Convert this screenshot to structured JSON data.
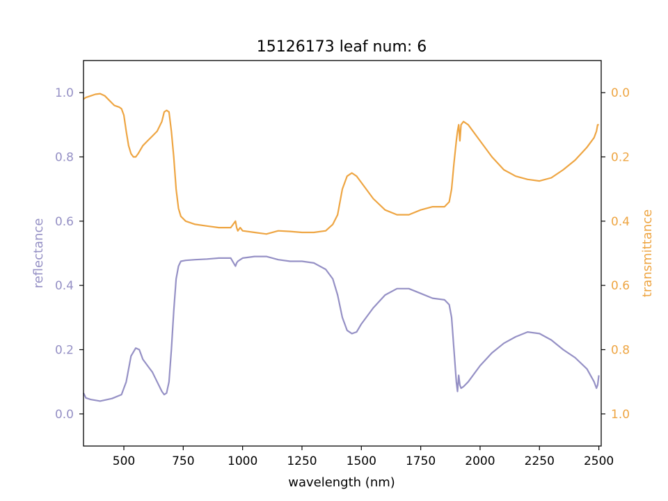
{
  "chart_data": {
    "type": "line",
    "title": "15126173 leaf num: 6",
    "xlabel": "wavelength (nm)",
    "xlim": [
      330,
      2510
    ],
    "x_ticks": [
      500,
      750,
      1000,
      1250,
      1500,
      1750,
      2000,
      2250,
      2500
    ],
    "x_tick_labels": [
      "500",
      "750",
      "1000",
      "1250",
      "1500",
      "1750",
      "2000",
      "2250",
      "2500"
    ],
    "grid": false,
    "legend": "none",
    "left_axis": {
      "label": "reflectance",
      "ylim": [
        -0.1,
        1.1
      ],
      "ticks": [
        0.0,
        0.2,
        0.4,
        0.6,
        0.8,
        1.0
      ],
      "tick_labels": [
        "0.0",
        "0.2",
        "0.4",
        "0.6",
        "0.8",
        "1.0"
      ],
      "color": "#9590c5"
    },
    "right_axis": {
      "label": "transmittance",
      "ylim": [
        1.1,
        -0.1
      ],
      "inverted": true,
      "ticks": [
        0.0,
        0.2,
        0.4,
        0.6,
        0.8,
        1.0
      ],
      "tick_labels": [
        "0.0",
        "0.2",
        "0.4",
        "0.6",
        "0.8",
        "1.0"
      ],
      "color": "#eea542"
    },
    "series": [
      {
        "axis": "left",
        "color": "#9590c5",
        "x": [
          330,
          340,
          360,
          400,
          450,
          490,
          510,
          530,
          550,
          565,
          580,
          600,
          620,
          640,
          660,
          670,
          680,
          690,
          700,
          710,
          720,
          730,
          740,
          760,
          800,
          850,
          900,
          950,
          970,
          975,
          980,
          990,
          1000,
          1050,
          1100,
          1150,
          1200,
          1250,
          1300,
          1350,
          1380,
          1400,
          1420,
          1440,
          1460,
          1480,
          1500,
          1550,
          1600,
          1650,
          1700,
          1750,
          1800,
          1850,
          1870,
          1880,
          1890,
          1900,
          1905,
          1910,
          1915,
          1920,
          1930,
          1950,
          2000,
          2050,
          2100,
          2150,
          2200,
          2250,
          2300,
          2350,
          2400,
          2450,
          2480,
          2490,
          2495,
          2500
        ],
        "y": [
          0.065,
          0.05,
          0.045,
          0.04,
          0.048,
          0.06,
          0.1,
          0.18,
          0.205,
          0.2,
          0.17,
          0.15,
          0.13,
          0.1,
          0.07,
          0.06,
          0.065,
          0.1,
          0.2,
          0.32,
          0.42,
          0.46,
          0.475,
          0.478,
          0.48,
          0.482,
          0.485,
          0.485,
          0.46,
          0.47,
          0.475,
          0.48,
          0.485,
          0.49,
          0.49,
          0.48,
          0.475,
          0.475,
          0.47,
          0.45,
          0.42,
          0.37,
          0.3,
          0.26,
          0.25,
          0.255,
          0.28,
          0.33,
          0.37,
          0.39,
          0.39,
          0.375,
          0.36,
          0.355,
          0.34,
          0.3,
          0.2,
          0.1,
          0.07,
          0.12,
          0.09,
          0.08,
          0.085,
          0.1,
          0.15,
          0.19,
          0.22,
          0.24,
          0.255,
          0.25,
          0.23,
          0.2,
          0.175,
          0.14,
          0.1,
          0.08,
          0.09,
          0.12
        ]
      },
      {
        "axis": "right",
        "color": "#eea542",
        "x": [
          330,
          340,
          360,
          380,
          400,
          420,
          440,
          460,
          480,
          490,
          500,
          510,
          520,
          530,
          540,
          550,
          560,
          580,
          600,
          620,
          640,
          660,
          670,
          680,
          690,
          700,
          710,
          720,
          730,
          740,
          760,
          800,
          850,
          900,
          950,
          970,
          975,
          980,
          990,
          1000,
          1050,
          1100,
          1150,
          1200,
          1250,
          1300,
          1350,
          1380,
          1400,
          1420,
          1440,
          1460,
          1480,
          1500,
          1550,
          1600,
          1650,
          1700,
          1750,
          1800,
          1850,
          1870,
          1880,
          1890,
          1900,
          1905,
          1910,
          1915,
          1920,
          1930,
          1950,
          2000,
          2050,
          2100,
          2150,
          2200,
          2250,
          2300,
          2350,
          2400,
          2450,
          2480,
          2490,
          2495,
          2500
        ],
        "y": [
          0.02,
          0.015,
          0.01,
          0.005,
          0.003,
          0.01,
          0.025,
          0.04,
          0.045,
          0.05,
          0.07,
          0.12,
          0.165,
          0.19,
          0.2,
          0.2,
          0.19,
          0.165,
          0.15,
          0.135,
          0.12,
          0.09,
          0.06,
          0.055,
          0.06,
          0.12,
          0.2,
          0.3,
          0.36,
          0.385,
          0.4,
          0.41,
          0.415,
          0.42,
          0.42,
          0.4,
          0.42,
          0.43,
          0.42,
          0.43,
          0.435,
          0.44,
          0.43,
          0.432,
          0.435,
          0.435,
          0.43,
          0.41,
          0.38,
          0.3,
          0.26,
          0.25,
          0.26,
          0.28,
          0.33,
          0.365,
          0.38,
          0.38,
          0.365,
          0.355,
          0.355,
          0.34,
          0.3,
          0.22,
          0.15,
          0.12,
          0.1,
          0.15,
          0.1,
          0.09,
          0.1,
          0.15,
          0.2,
          0.24,
          0.26,
          0.27,
          0.275,
          0.265,
          0.24,
          0.21,
          0.17,
          0.14,
          0.12,
          0.1,
          0.1
        ]
      }
    ]
  }
}
